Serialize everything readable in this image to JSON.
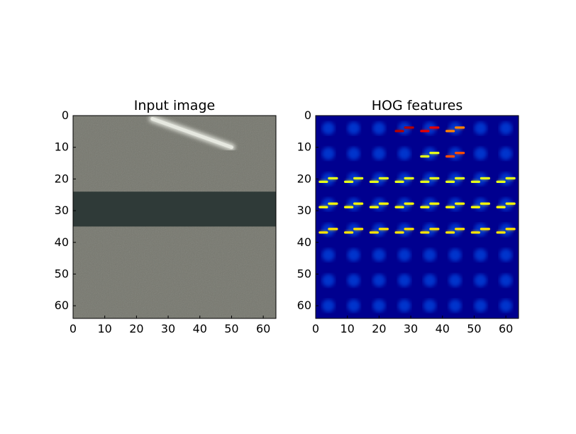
{
  "chart_data": [
    {
      "type": "heatmap",
      "title": "Input image",
      "content": "photo-patch",
      "xlim": [
        0,
        64
      ],
      "ylim": [
        64,
        0
      ],
      "xticks": [
        0,
        10,
        20,
        30,
        40,
        50,
        60
      ],
      "yticks": [
        0,
        10,
        20,
        30,
        40,
        50,
        60
      ],
      "xlabel": "",
      "ylabel": "",
      "grid": false,
      "colors": {
        "pavement": "#77786f",
        "dark_band": "#2f3a38",
        "stripe": "#e6e8e0"
      },
      "features": [
        {
          "kind": "dark-band",
          "y": [
            24,
            35
          ]
        },
        {
          "kind": "light-stripe",
          "from": [
            25,
            1
          ],
          "to": [
            50,
            10
          ]
        }
      ]
    },
    {
      "type": "heatmap",
      "title": "HOG features",
      "content": "hog-visualization",
      "colormap": "jet",
      "xlim": [
        0,
        64
      ],
      "ylim": [
        64,
        0
      ],
      "xticks": [
        0,
        10,
        20,
        30,
        40,
        50,
        60
      ],
      "yticks": [
        0,
        10,
        20,
        30,
        40,
        50,
        60
      ],
      "xlabel": "",
      "ylabel": "",
      "grid": false,
      "cell_size": 8,
      "grid_cells": [
        8,
        8
      ],
      "cells": [
        [
          0.15,
          0.15,
          0.2,
          0.95,
          0.9,
          0.75,
          0.2,
          0.15
        ],
        [
          0.25,
          0.2,
          0.2,
          0.25,
          0.6,
          0.8,
          0.3,
          0.2
        ],
        [
          0.6,
          0.6,
          0.6,
          0.6,
          0.6,
          0.6,
          0.6,
          0.6
        ],
        [
          0.62,
          0.62,
          0.62,
          0.62,
          0.62,
          0.62,
          0.62,
          0.62
        ],
        [
          0.65,
          0.65,
          0.65,
          0.65,
          0.65,
          0.65,
          0.65,
          0.65
        ],
        [
          0.2,
          0.2,
          0.2,
          0.2,
          0.2,
          0.2,
          0.2,
          0.2
        ],
        [
          0.2,
          0.2,
          0.2,
          0.2,
          0.2,
          0.2,
          0.2,
          0.2
        ],
        [
          0.2,
          0.2,
          0.2,
          0.2,
          0.2,
          0.2,
          0.2,
          0.2
        ]
      ]
    }
  ]
}
